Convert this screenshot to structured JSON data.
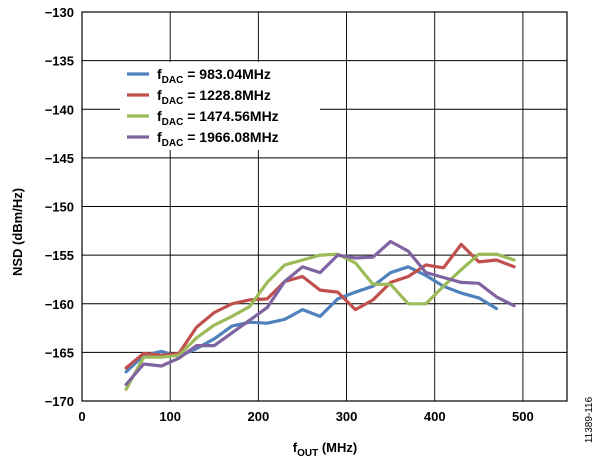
{
  "chart_data": {
    "type": "line",
    "xlabel": {
      "main": "f",
      "sub": "OUT",
      "rest": " (MHz)"
    },
    "ylabel": "NSD (dBm/Hz)",
    "xlim": [
      0,
      550
    ],
    "ylim": [
      -170,
      -130
    ],
    "xticks": [
      0,
      100,
      200,
      300,
      400,
      500
    ],
    "yticks": [
      -130,
      -135,
      -140,
      -145,
      -150,
      -155,
      -160,
      -165,
      -170
    ],
    "grid": true,
    "legend_position": "top-left",
    "figure_id": "11389-116",
    "series": [
      {
        "name_main": "f",
        "name_sub": "DAC",
        "name_rest": " = 983.04MHz",
        "color": "#4f81bd",
        "x": [
          50,
          70,
          90,
          110,
          130,
          150,
          170,
          190,
          210,
          230,
          250,
          270,
          290,
          310,
          330,
          350,
          370,
          390,
          410,
          430,
          450,
          470
        ],
        "y": [
          -167.0,
          -165.3,
          -164.9,
          -165.4,
          -164.6,
          -163.6,
          -162.3,
          -161.9,
          -162.0,
          -161.6,
          -160.6,
          -161.3,
          -159.5,
          -158.8,
          -158.2,
          -156.8,
          -156.2,
          -157.1,
          -158.2,
          -158.9,
          -159.4,
          -160.5
        ]
      },
      {
        "name_main": "f",
        "name_sub": "DAC",
        "name_rest": " = 1228.8MHz",
        "color": "#c0504d",
        "x": [
          50,
          70,
          90,
          110,
          130,
          150,
          170,
          190,
          210,
          230,
          250,
          270,
          290,
          310,
          330,
          350,
          370,
          390,
          410,
          430,
          450,
          470,
          490
        ],
        "y": [
          -166.6,
          -165.1,
          -165.3,
          -165.1,
          -162.4,
          -160.9,
          -160.0,
          -159.6,
          -159.5,
          -157.7,
          -157.2,
          -158.6,
          -158.8,
          -160.6,
          -159.6,
          -157.8,
          -157.2,
          -156.0,
          -156.3,
          -153.9,
          -155.7,
          -155.5,
          -156.2
        ]
      },
      {
        "name_main": "f",
        "name_sub": "DAC",
        "name_rest": " = 1474.56MHz",
        "color": "#9bbb59",
        "x": [
          50,
          70,
          90,
          110,
          130,
          150,
          170,
          190,
          210,
          230,
          250,
          270,
          290,
          310,
          330,
          350,
          370,
          390,
          410,
          430,
          450,
          470,
          490
        ],
        "y": [
          -168.8,
          -165.5,
          -165.5,
          -165.3,
          -163.5,
          -162.2,
          -161.3,
          -160.3,
          -157.8,
          -156.0,
          -155.5,
          -155.0,
          -154.9,
          -155.8,
          -158.0,
          -158.0,
          -160.0,
          -160.0,
          -158.2,
          -156.5,
          -154.9,
          -154.9,
          -155.5
        ]
      },
      {
        "name_main": "f",
        "name_sub": "DAC",
        "name_rest": " = 1966.08MHz",
        "color": "#8064a2",
        "x": [
          50,
          70,
          90,
          110,
          130,
          150,
          170,
          190,
          210,
          230,
          250,
          270,
          290,
          310,
          330,
          350,
          370,
          390,
          410,
          430,
          450,
          470,
          490
        ],
        "y": [
          -168.3,
          -166.2,
          -166.4,
          -165.6,
          -164.3,
          -164.3,
          -163.0,
          -161.7,
          -160.4,
          -157.7,
          -156.2,
          -156.8,
          -155.0,
          -155.3,
          -155.2,
          -153.6,
          -154.6,
          -156.8,
          -157.3,
          -157.8,
          -157.9,
          -159.3,
          -160.2
        ]
      }
    ]
  }
}
